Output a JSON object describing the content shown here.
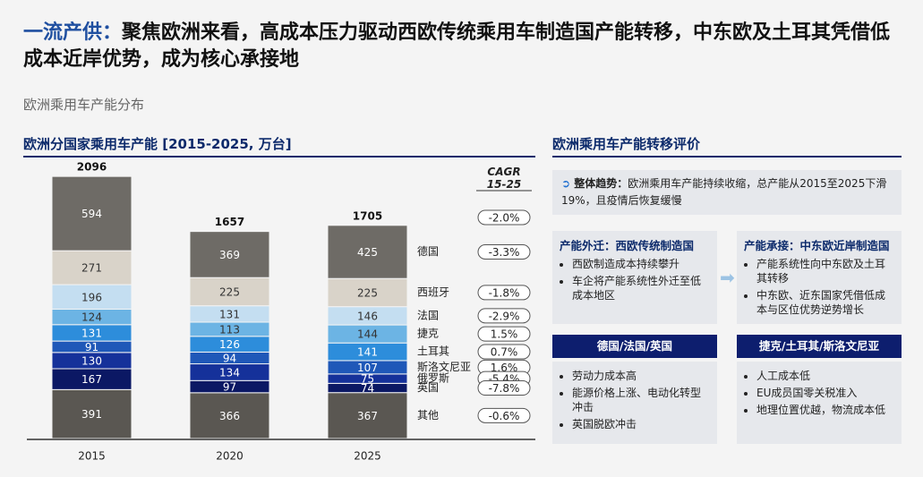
{
  "header": {
    "title_highlight": "一流产供：",
    "title": "聚焦欧洲来看，高成本压力驱动西欧传统乘用车制造国产能转移，中东欧及土耳其凭借低成本近岸优势，成为核心承接地",
    "subtitle": "欧洲乘用车产能分布"
  },
  "chart_data": {
    "type": "stacked-bar",
    "title": "欧洲分国家乘用车产能 [2015-2025, 万台]",
    "categories": [
      "2015",
      "2020",
      "2025"
    ],
    "totals": [
      2096,
      1657,
      1705
    ],
    "series": [
      {
        "name": "德国",
        "color": "#6e6b66",
        "values": [
          594,
          369,
          425
        ]
      },
      {
        "name": "西班牙",
        "color": "#d9d3c9",
        "values": [
          271,
          225,
          225
        ]
      },
      {
        "name": "法国",
        "color": "#c4def1",
        "values": [
          196,
          131,
          146
        ]
      },
      {
        "name": "捷克",
        "color": "#6cb4e4",
        "values": [
          124,
          113,
          144
        ]
      },
      {
        "name": "土耳其",
        "color": "#2d8ddb",
        "values": [
          131,
          126,
          141
        ]
      },
      {
        "name": "斯洛文尼亚",
        "color": "#1f58b8",
        "values": [
          91,
          94,
          107
        ]
      },
      {
        "name": "俄罗斯",
        "color": "#15319a",
        "values": [
          130,
          134,
          75
        ]
      },
      {
        "name": "英国",
        "color": "#0b1864",
        "values": [
          167,
          97,
          74
        ]
      },
      {
        "name": "其他",
        "color": "#5a5752",
        "values": [
          391,
          366,
          367
        ]
      }
    ],
    "cagr_title": "CAGR 15-25",
    "cagr_total": "-2.0%",
    "cagr": [
      "-3.3%",
      "-1.8%",
      "-2.9%",
      "1.5%",
      "0.7%",
      "1.6%",
      "-5.4%",
      "-7.8%",
      "-0.6%"
    ]
  },
  "panel": {
    "title": "欧洲乘用车产能转移评价",
    "trend_label": "整体趋势：",
    "trend": "欧洲乘用车产能持续收缩，总产能从2015至2025下滑19%，且疫情后恢复缓慢",
    "left": {
      "heading": "产能外迁：西欧传统制造国",
      "bullets": [
        "西欧制造成本持续攀升",
        "车企将产能系统性外迁至低成本地区"
      ]
    },
    "right": {
      "heading": "产能承接：中东欧近岸制造国",
      "bullets": [
        "产能系统性向中东欧及土耳其转移",
        "中东欧、近东国家凭借低成本与区位优势逆势增长"
      ]
    },
    "left2": {
      "heading": "德国/法国/英国",
      "bullets": [
        "劳动力成本高",
        "能源价格上涨、电动化转型冲击",
        "英国脱欧冲击"
      ]
    },
    "right2": {
      "heading": "捷克/土耳其/斯洛文尼亚",
      "bullets": [
        "人工成本低",
        "EU成员国零关税准入",
        "地理位置优越，物流成本低"
      ]
    }
  }
}
